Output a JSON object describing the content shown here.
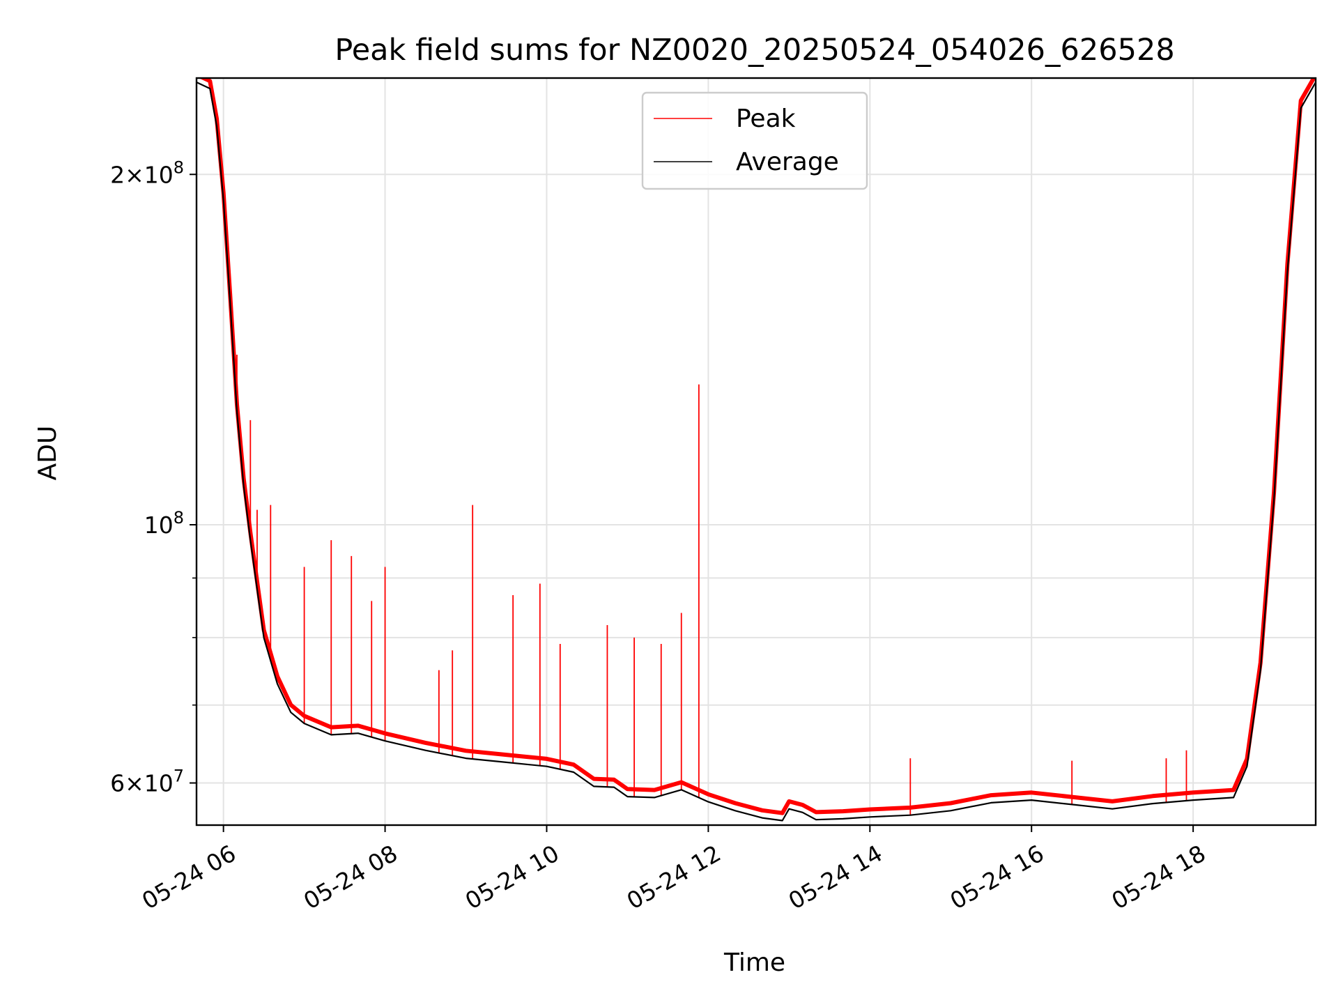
{
  "chart_data": {
    "type": "line",
    "title": "Peak field sums for NZ0020_20250524_054026_626528",
    "xlabel": "Time",
    "ylabel": "ADU",
    "y_scale": "log",
    "ylim": [
      55200000,
      242000000
    ],
    "xlim": [
      "2025-05-24T05:40:00",
      "2025-05-24T19:31:00"
    ],
    "grid": true,
    "legend_position": "upper center",
    "x_ticks": [
      {
        "x": "2025-05-24T06:00:00",
        "label": "05-24 06"
      },
      {
        "x": "2025-05-24T08:00:00",
        "label": "05-24 08"
      },
      {
        "x": "2025-05-24T10:00:00",
        "label": "05-24 10"
      },
      {
        "x": "2025-05-24T12:00:00",
        "label": "05-24 12"
      },
      {
        "x": "2025-05-24T14:00:00",
        "label": "05-24 14"
      },
      {
        "x": "2025-05-24T16:00:00",
        "label": "05-24 16"
      },
      {
        "x": "2025-05-24T18:00:00",
        "label": "05-24 18"
      }
    ],
    "y_major_ticks": [
      {
        "value": 60000000,
        "mantissa": "6",
        "exponent": "7"
      },
      {
        "value": 100000000,
        "mantissa": "",
        "exponent": "8"
      },
      {
        "value": 200000000,
        "mantissa": "2",
        "exponent": "8"
      }
    ],
    "y_minor_ticks": [
      70000000,
      80000000,
      90000000
    ],
    "series": [
      {
        "name": "Average",
        "color": "#000000",
        "points": [
          [
            "2025-05-24T05:40:00",
            240000000
          ],
          [
            "2025-05-24T05:50:00",
            237000000
          ],
          [
            "2025-05-24T05:55:00",
            220000000
          ],
          [
            "2025-05-24T06:00:00",
            190000000
          ],
          [
            "2025-05-24T06:05:00",
            155000000
          ],
          [
            "2025-05-24T06:10:00",
            125000000
          ],
          [
            "2025-05-24T06:15:00",
            108000000
          ],
          [
            "2025-05-24T06:20:00",
            97000000
          ],
          [
            "2025-05-24T06:25:00",
            88000000
          ],
          [
            "2025-05-24T06:30:00",
            80000000
          ],
          [
            "2025-05-24T06:40:00",
            73000000
          ],
          [
            "2025-05-24T06:50:00",
            69000000
          ],
          [
            "2025-05-24T07:00:00",
            67500000
          ],
          [
            "2025-05-24T07:20:00",
            66000000
          ],
          [
            "2025-05-24T07:40:00",
            66200000
          ],
          [
            "2025-05-24T08:00:00",
            65200000
          ],
          [
            "2025-05-24T08:30:00",
            64000000
          ],
          [
            "2025-05-24T09:00:00",
            63000000
          ],
          [
            "2025-05-24T09:30:00",
            62500000
          ],
          [
            "2025-05-24T10:00:00",
            62000000
          ],
          [
            "2025-05-24T10:20:00",
            61300000
          ],
          [
            "2025-05-24T10:35:00",
            59600000
          ],
          [
            "2025-05-24T10:50:00",
            59500000
          ],
          [
            "2025-05-24T11:00:00",
            58400000
          ],
          [
            "2025-05-24T11:20:00",
            58300000
          ],
          [
            "2025-05-24T11:40:00",
            59200000
          ],
          [
            "2025-05-24T12:00:00",
            57800000
          ],
          [
            "2025-05-24T12:20:00",
            56800000
          ],
          [
            "2025-05-24T12:40:00",
            56000000
          ],
          [
            "2025-05-24T12:55:00",
            55700000
          ],
          [
            "2025-05-24T13:00:00",
            57000000
          ],
          [
            "2025-05-24T13:10:00",
            56600000
          ],
          [
            "2025-05-24T13:20:00",
            55800000
          ],
          [
            "2025-05-24T13:40:00",
            55900000
          ],
          [
            "2025-05-24T14:00:00",
            56100000
          ],
          [
            "2025-05-24T14:30:00",
            56300000
          ],
          [
            "2025-05-24T15:00:00",
            56800000
          ],
          [
            "2025-05-24T15:30:00",
            57700000
          ],
          [
            "2025-05-24T16:00:00",
            58000000
          ],
          [
            "2025-05-24T16:30:00",
            57500000
          ],
          [
            "2025-05-24T17:00:00",
            57000000
          ],
          [
            "2025-05-24T17:30:00",
            57600000
          ],
          [
            "2025-05-24T18:00:00",
            58000000
          ],
          [
            "2025-05-24T18:30:00",
            58300000
          ],
          [
            "2025-05-24T18:40:00",
            62000000
          ],
          [
            "2025-05-24T18:50:00",
            75000000
          ],
          [
            "2025-05-24T19:00:00",
            105000000
          ],
          [
            "2025-05-24T19:10:00",
            165000000
          ],
          [
            "2025-05-24T19:20:00",
            228000000
          ],
          [
            "2025-05-24T19:31:00",
            240000000
          ]
        ]
      },
      {
        "name": "Peak",
        "color": "#ff0000",
        "spikes": [
          [
            "2025-05-24T06:10:00",
            140000000
          ],
          [
            "2025-05-24T06:20:00",
            123000000
          ],
          [
            "2025-05-24T06:25:00",
            103000000
          ],
          [
            "2025-05-24T06:35:00",
            104000000
          ],
          [
            "2025-05-24T07:00:00",
            92000000
          ],
          [
            "2025-05-24T07:20:00",
            97000000
          ],
          [
            "2025-05-24T07:35:00",
            94000000
          ],
          [
            "2025-05-24T07:50:00",
            86000000
          ],
          [
            "2025-05-24T08:00:00",
            92000000
          ],
          [
            "2025-05-24T08:40:00",
            75000000
          ],
          [
            "2025-05-24T08:50:00",
            78000000
          ],
          [
            "2025-05-24T09:05:00",
            104000000
          ],
          [
            "2025-05-24T09:35:00",
            87000000
          ],
          [
            "2025-05-24T09:55:00",
            89000000
          ],
          [
            "2025-05-24T10:10:00",
            79000000
          ],
          [
            "2025-05-24T10:45:00",
            82000000
          ],
          [
            "2025-05-24T11:05:00",
            80000000
          ],
          [
            "2025-05-24T11:25:00",
            79000000
          ],
          [
            "2025-05-24T11:40:00",
            84000000
          ],
          [
            "2025-05-24T11:53:00",
            132000000
          ],
          [
            "2025-05-24T14:30:00",
            63000000
          ],
          [
            "2025-05-24T16:30:00",
            62700000
          ],
          [
            "2025-05-24T17:40:00",
            63000000
          ],
          [
            "2025-05-24T17:55:00",
            64000000
          ]
        ]
      }
    ]
  }
}
